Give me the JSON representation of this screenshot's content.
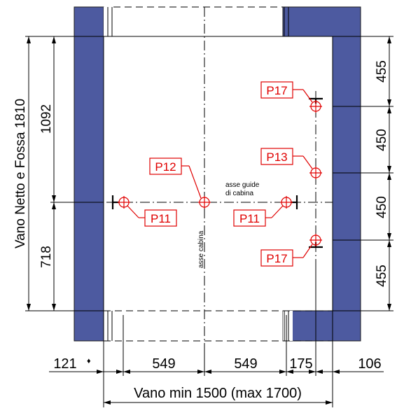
{
  "colors": {
    "wall": "#4d5aa0",
    "wall_border": "#1a1a1a",
    "annotation": "#e00000",
    "line": "#000000"
  },
  "title_vertical": "Vano Netto e Fossa 1810",
  "left_dims": {
    "upper": "1092",
    "lower": "718"
  },
  "right_dims": [
    "455",
    "450",
    "450",
    "455"
  ],
  "bottom_dims": {
    "d1": "121",
    "d2": "549",
    "d3": "549",
    "d4": "175",
    "d5": "106"
  },
  "marker_symbol": "♦",
  "overall_width_label": "Vano min 1500 (max 1700)",
  "axis_labels": {
    "cabin_axis": "asse cabina",
    "guide_axis_line1": "asse guide",
    "guide_axis_line2": "di cabina"
  },
  "points": [
    {
      "label": "P17",
      "icon": "crosshair-circle-icon"
    },
    {
      "label": "P13",
      "icon": "crosshair-circle-icon"
    },
    {
      "label": "P12",
      "icon": "crosshair-circle-icon"
    },
    {
      "label": "P11",
      "icon": "crosshair-circle-icon"
    },
    {
      "label": "P11",
      "icon": "crosshair-circle-icon"
    },
    {
      "label": "P17",
      "icon": "crosshair-circle-icon"
    }
  ]
}
